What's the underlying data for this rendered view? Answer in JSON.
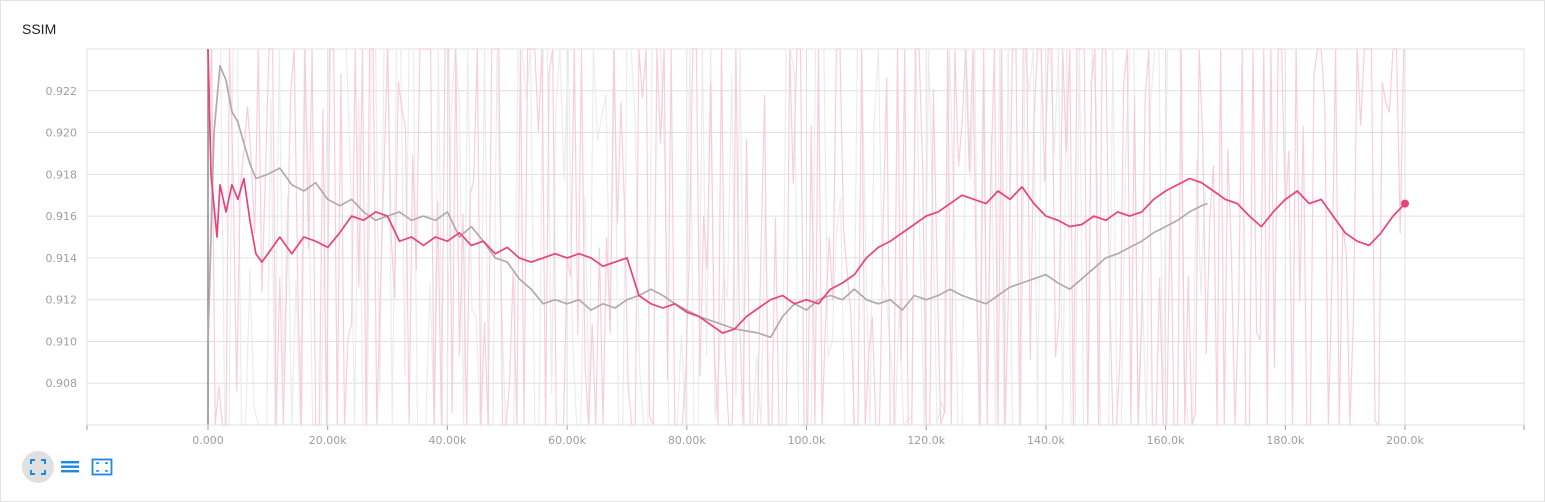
{
  "card": {
    "title": "SSIM"
  },
  "toolbar": {
    "buttons": [
      {
        "icon": "fit-domain-icon",
        "active": true
      },
      {
        "icon": "toggle-log-scale-icon",
        "active": false
      },
      {
        "icon": "expand-chart-icon",
        "active": false
      }
    ]
  },
  "colors": {
    "pink": "#e8437a",
    "pink_light": "#f7c5d6",
    "gray": "#b3aaad",
    "gray_light": "#e9e9e9",
    "grid": "#e0e0e0",
    "axis": "#9e9e9e"
  },
  "chart_data": {
    "type": "line",
    "title": "SSIM",
    "xlim": [
      -20000,
      220000
    ],
    "ylim": [
      0.906,
      0.924
    ],
    "x_ticks": [
      0,
      20000,
      40000,
      60000,
      80000,
      100000,
      120000,
      140000,
      160000,
      180000,
      200000
    ],
    "x_tick_labels": [
      "0.000",
      "20.00k",
      "40.00k",
      "60.00k",
      "80.00k",
      "100.0k",
      "120.0k",
      "140.0k",
      "160.0k",
      "180.0k",
      "200.0k"
    ],
    "y_ticks": [
      0.908,
      0.91,
      0.912,
      0.914,
      0.916,
      0.918,
      0.92,
      0.922
    ],
    "y_tick_labels": [
      "0.908",
      "0.910",
      "0.912",
      "0.914",
      "0.916",
      "0.918",
      "0.920",
      "0.922"
    ],
    "grid": true,
    "series": [
      {
        "color": "#b3aaad",
        "raw_color": "#e9e9e9",
        "x": [
          0,
          1000,
          2000,
          3000,
          4000,
          5000,
          6000,
          7000,
          8000,
          10000,
          12000,
          14000,
          16000,
          18000,
          20000,
          22000,
          24000,
          26000,
          28000,
          30000,
          32000,
          34000,
          36000,
          38000,
          40000,
          42000,
          44000,
          46000,
          48000,
          50000,
          52000,
          54000,
          56000,
          58000,
          60000,
          62000,
          64000,
          66000,
          68000,
          70000,
          72000,
          74000,
          76000,
          78000,
          80000,
          82000,
          84000,
          86000,
          88000,
          90000,
          92000,
          94000,
          96000,
          98000,
          100000,
          102000,
          104000,
          106000,
          108000,
          110000,
          112000,
          114000,
          116000,
          118000,
          120000,
          122000,
          124000,
          126000,
          128000,
          130000,
          132000,
          134000,
          136000,
          138000,
          140000,
          142000,
          144000,
          146000,
          148000,
          150000,
          152000,
          154000,
          156000,
          158000,
          160000,
          162000,
          164000,
          166000,
          167000
        ],
        "values": [
          0.91,
          0.92,
          0.9232,
          0.9225,
          0.921,
          0.9205,
          0.9195,
          0.9185,
          0.9178,
          0.918,
          0.9183,
          0.9175,
          0.9172,
          0.9176,
          0.9168,
          0.9165,
          0.9168,
          0.9162,
          0.9158,
          0.916,
          0.9162,
          0.9158,
          0.916,
          0.9158,
          0.9162,
          0.915,
          0.9155,
          0.9148,
          0.914,
          0.9138,
          0.913,
          0.9125,
          0.9118,
          0.912,
          0.9118,
          0.912,
          0.9115,
          0.9118,
          0.9116,
          0.912,
          0.9122,
          0.9125,
          0.9122,
          0.9118,
          0.9115,
          0.9112,
          0.911,
          0.9108,
          0.9106,
          0.9105,
          0.9104,
          0.9102,
          0.9112,
          0.9118,
          0.9115,
          0.912,
          0.9122,
          0.912,
          0.9125,
          0.912,
          0.9118,
          0.912,
          0.9115,
          0.9122,
          0.912,
          0.9122,
          0.9125,
          0.9122,
          0.912,
          0.9118,
          0.9122,
          0.9126,
          0.9128,
          0.913,
          0.9132,
          0.9128,
          0.9125,
          0.913,
          0.9135,
          0.914,
          0.9142,
          0.9145,
          0.9148,
          0.9152,
          0.9155,
          0.9158,
          0.9162,
          0.9165,
          0.9166
        ]
      },
      {
        "color": "#e8437a",
        "raw_color": "#f7c5d6",
        "x": [
          0,
          500,
          1000,
          1500,
          2000,
          3000,
          4000,
          5000,
          6000,
          7000,
          8000,
          9000,
          10000,
          12000,
          14000,
          16000,
          18000,
          20000,
          22000,
          24000,
          26000,
          28000,
          30000,
          32000,
          34000,
          36000,
          38000,
          40000,
          42000,
          44000,
          46000,
          48000,
          50000,
          52000,
          54000,
          56000,
          58000,
          60000,
          62000,
          64000,
          66000,
          68000,
          70000,
          72000,
          74000,
          76000,
          78000,
          80000,
          82000,
          84000,
          86000,
          88000,
          90000,
          92000,
          94000,
          96000,
          98000,
          100000,
          102000,
          104000,
          106000,
          108000,
          110000,
          112000,
          114000,
          116000,
          118000,
          120000,
          122000,
          124000,
          126000,
          128000,
          130000,
          132000,
          134000,
          136000,
          138000,
          140000,
          142000,
          144000,
          146000,
          148000,
          150000,
          152000,
          154000,
          156000,
          158000,
          160000,
          162000,
          164000,
          166000,
          168000,
          170000,
          172000,
          174000,
          176000,
          178000,
          180000,
          182000,
          184000,
          186000,
          188000,
          190000,
          192000,
          194000,
          196000,
          198000,
          200000
        ],
        "values": [
          0.924,
          0.918,
          0.9165,
          0.915,
          0.9175,
          0.9162,
          0.9175,
          0.9168,
          0.9178,
          0.9158,
          0.9142,
          0.9138,
          0.9142,
          0.915,
          0.9142,
          0.915,
          0.9148,
          0.9145,
          0.9152,
          0.916,
          0.9158,
          0.9162,
          0.916,
          0.9148,
          0.915,
          0.9146,
          0.915,
          0.9148,
          0.9152,
          0.9146,
          0.9148,
          0.9142,
          0.9145,
          0.914,
          0.9138,
          0.914,
          0.9142,
          0.914,
          0.9142,
          0.914,
          0.9136,
          0.9138,
          0.914,
          0.9122,
          0.9118,
          0.9116,
          0.9118,
          0.9114,
          0.9112,
          0.9108,
          0.9104,
          0.9106,
          0.9112,
          0.9116,
          0.912,
          0.9122,
          0.9118,
          0.912,
          0.9118,
          0.9125,
          0.9128,
          0.9132,
          0.914,
          0.9145,
          0.9148,
          0.9152,
          0.9156,
          0.916,
          0.9162,
          0.9166,
          0.917,
          0.9168,
          0.9166,
          0.9172,
          0.9168,
          0.9174,
          0.9166,
          0.916,
          0.9158,
          0.9155,
          0.9156,
          0.916,
          0.9158,
          0.9162,
          0.916,
          0.9162,
          0.9168,
          0.9172,
          0.9175,
          0.9178,
          0.9176,
          0.9172,
          0.9168,
          0.9166,
          0.916,
          0.9155,
          0.9162,
          0.9168,
          0.9172,
          0.9166,
          0.9168,
          0.916,
          0.9152,
          0.9148,
          0.9146,
          0.9152,
          0.916,
          0.9166
        ]
      }
    ]
  }
}
